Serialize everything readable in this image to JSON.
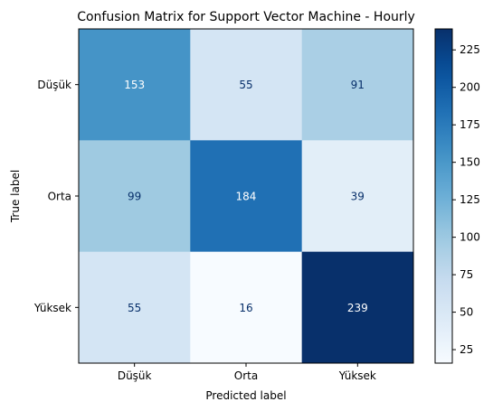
{
  "chart_data": {
    "type": "heatmap",
    "title": "Confusion Matrix for Support Vector Machine - Hourly",
    "xlabel": "Predicted label",
    "ylabel": "True label",
    "x_categories": [
      "Düşük",
      "Orta",
      "Yüksek"
    ],
    "y_categories": [
      "Düşük",
      "Orta",
      "Yüksek"
    ],
    "values": [
      [
        153,
        55,
        91
      ],
      [
        99,
        184,
        39
      ],
      [
        55,
        16,
        239
      ]
    ],
    "colormap": "Blues",
    "vmin": 16,
    "vmax": 239,
    "colorbar_ticks": [
      25,
      50,
      75,
      100,
      125,
      150,
      175,
      200,
      225
    ]
  }
}
